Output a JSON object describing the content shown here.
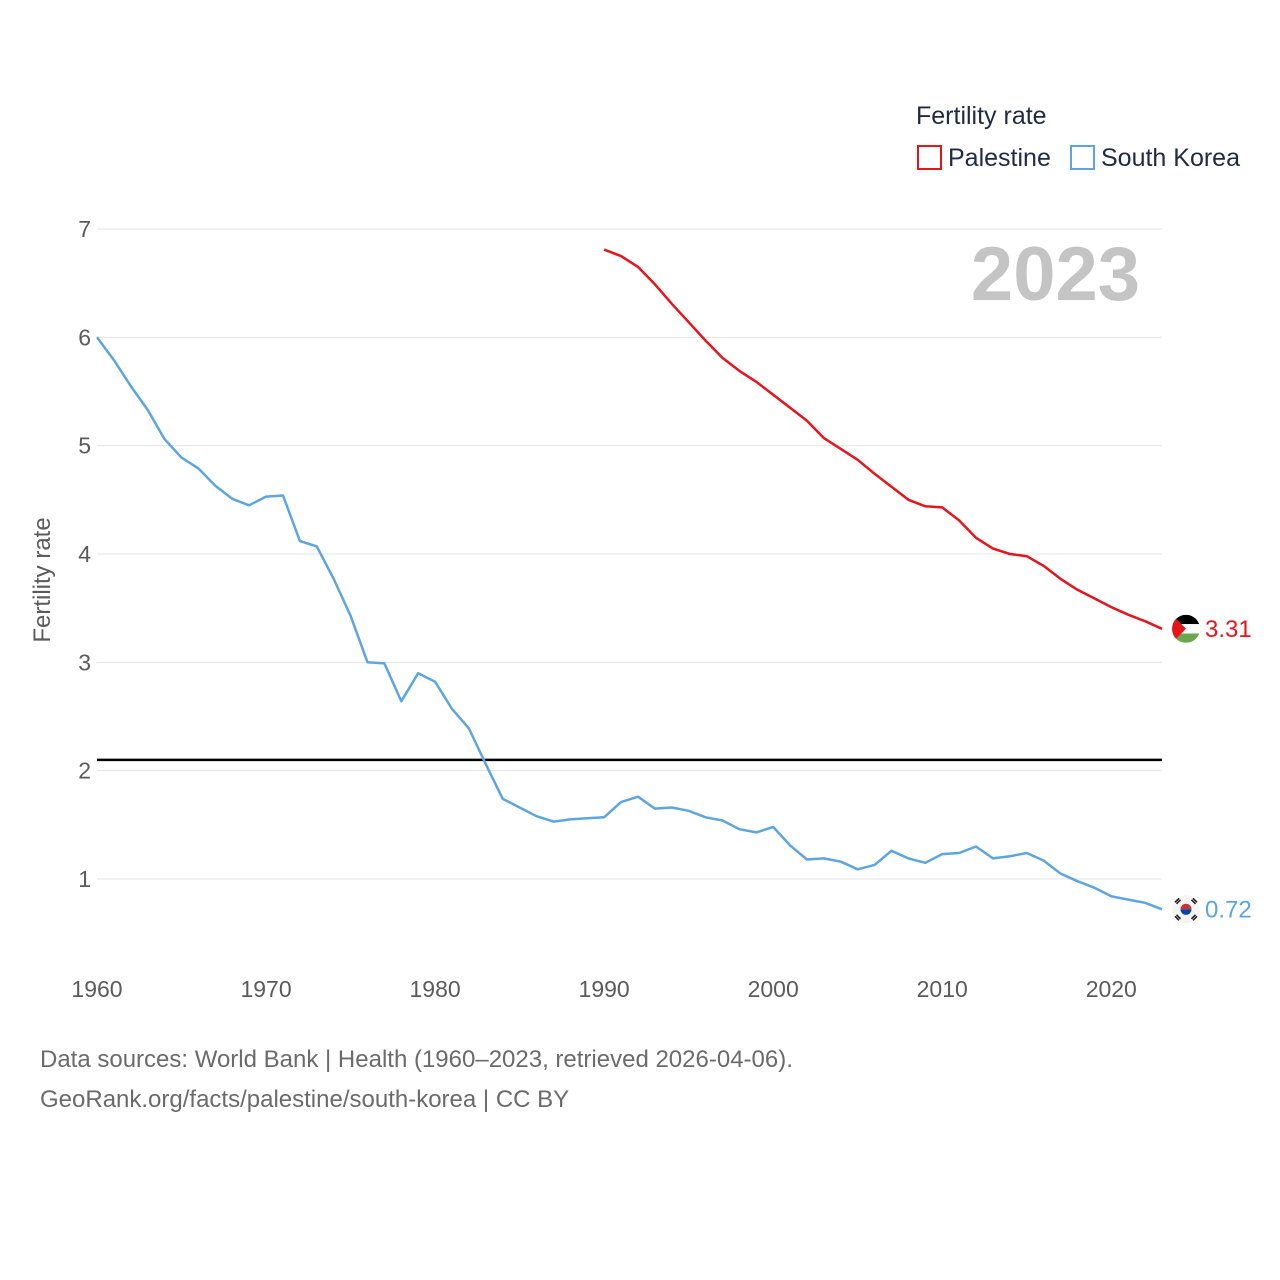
{
  "chart_data": {
    "type": "line",
    "legend_title": "Fertility rate",
    "ylabel": "Fertility rate",
    "year_stamp": "2023",
    "xlim": [
      1960,
      2023
    ],
    "ylim": [
      0.4,
      7.1
    ],
    "yticks": [
      1,
      2,
      3,
      4,
      5,
      6,
      7
    ],
    "xticks": [
      1960,
      1970,
      1980,
      1990,
      2000,
      2010,
      2020
    ],
    "reference_line": 2.1,
    "grid": true,
    "legend_position": "top-right",
    "series": [
      {
        "name": "Palestine",
        "color": "#e8141b",
        "end_label": "3.31",
        "flag": "palestine-flag",
        "x": [
          1990,
          1991,
          1992,
          1993,
          1994,
          1995,
          1996,
          1997,
          1998,
          1999,
          2000,
          2001,
          2002,
          2003,
          2004,
          2005,
          2006,
          2007,
          2008,
          2009,
          2010,
          2011,
          2012,
          2013,
          2014,
          2015,
          2016,
          2017,
          2018,
          2019,
          2020,
          2021,
          2022,
          2023
        ],
        "values": [
          6.81,
          6.75,
          6.65,
          6.49,
          6.31,
          6.14,
          5.97,
          5.81,
          5.69,
          5.59,
          5.47,
          5.35,
          5.23,
          5.07,
          4.97,
          4.87,
          4.74,
          4.62,
          4.5,
          4.44,
          4.43,
          4.31,
          4.15,
          4.05,
          4.0,
          3.98,
          3.89,
          3.77,
          3.67,
          3.59,
          3.51,
          3.44,
          3.38,
          3.31
        ]
      },
      {
        "name": "South Korea",
        "color": "#5da5e1",
        "end_label": "0.72",
        "flag": "south-korea-flag",
        "x": [
          1960,
          1961,
          1962,
          1963,
          1964,
          1965,
          1966,
          1967,
          1968,
          1969,
          1970,
          1971,
          1972,
          1973,
          1974,
          1975,
          1976,
          1977,
          1978,
          1979,
          1980,
          1981,
          1982,
          1983,
          1984,
          1985,
          1986,
          1987,
          1988,
          1989,
          1990,
          1991,
          1992,
          1993,
          1994,
          1995,
          1996,
          1997,
          1998,
          1999,
          2000,
          2001,
          2002,
          2003,
          2004,
          2005,
          2006,
          2007,
          2008,
          2009,
          2010,
          2011,
          2012,
          2013,
          2014,
          2015,
          2016,
          2017,
          2018,
          2019,
          2020,
          2021,
          2022,
          2023
        ],
        "values": [
          6.0,
          5.79,
          5.55,
          5.33,
          5.06,
          4.89,
          4.79,
          4.63,
          4.51,
          4.45,
          4.53,
          4.54,
          4.12,
          4.07,
          3.77,
          3.43,
          3.0,
          2.99,
          2.64,
          2.9,
          2.82,
          2.57,
          2.39,
          2.06,
          1.74,
          1.66,
          1.58,
          1.53,
          1.55,
          1.56,
          1.57,
          1.71,
          1.76,
          1.65,
          1.66,
          1.63,
          1.57,
          1.54,
          1.46,
          1.43,
          1.48,
          1.31,
          1.18,
          1.19,
          1.16,
          1.09,
          1.13,
          1.26,
          1.19,
          1.15,
          1.23,
          1.24,
          1.3,
          1.19,
          1.21,
          1.24,
          1.17,
          1.05,
          0.98,
          0.92,
          0.84,
          0.81,
          0.78,
          0.72
        ]
      }
    ]
  },
  "footer": {
    "line1": "Data sources: World Bank | Health (1960–2023, retrieved 2026-04-06).",
    "line2": "GeoRank.org/facts/palestine/south-korea | CC BY"
  }
}
